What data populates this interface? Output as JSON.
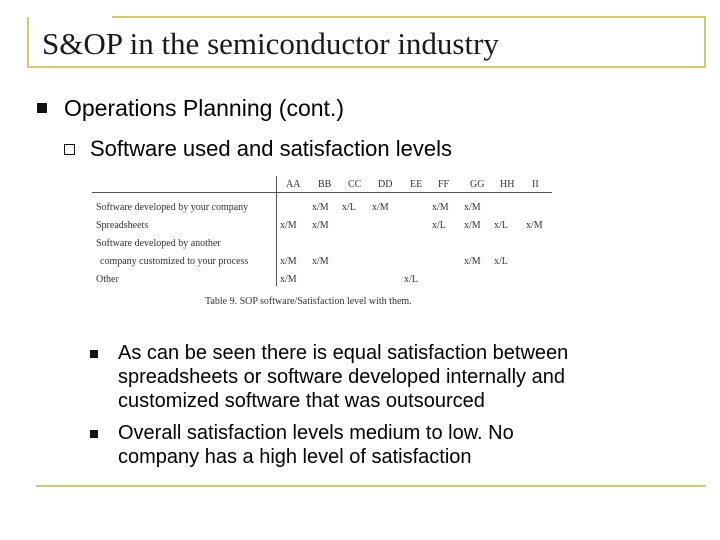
{
  "slide": {
    "title": "S&OP in the semiconductor industry",
    "bullet1": "Operations Planning (cont.)",
    "bullet2": "Software used and satisfaction levels",
    "bullet3a_line1": "As can be seen there is equal satisfaction between",
    "bullet3a_line2": "spreadsheets or software developed internally and",
    "bullet3a_line3": "customized software that was outsourced",
    "bullet3b_line1": "Overall satisfaction levels medium to low.  No",
    "bullet3b_line2": "company has a high level of satisfaction"
  },
  "table": {
    "headers": [
      "AA",
      "BB",
      "CC",
      "DD",
      "EE",
      "FF",
      "GG",
      "HH",
      "II"
    ],
    "rows": [
      {
        "label": "Software developed by your company",
        "cells": [
          "",
          "x/M",
          "x/L",
          "x/M",
          "",
          "x/M",
          "x/M",
          "",
          ""
        ]
      },
      {
        "label": "Spreadsheets",
        "cells": [
          "x/M",
          "x/M",
          "",
          "",
          "",
          "x/L",
          "x/M",
          "x/L",
          "x/M"
        ]
      },
      {
        "label": "Software developed by another",
        "cells": [
          "",
          "",
          "",
          "",
          "",
          "",
          "",
          "",
          ""
        ]
      },
      {
        "label": "company customized to your process",
        "cells": [
          "x/M",
          "x/M",
          "",
          "",
          "",
          "",
          "x/M",
          "x/L",
          ""
        ]
      },
      {
        "label": "Other",
        "cells": [
          "x/M",
          "",
          "",
          "",
          "x/L",
          "",
          "",
          "",
          ""
        ]
      }
    ],
    "caption": "Table 9.  SOP software/Satisfaction level with them."
  }
}
